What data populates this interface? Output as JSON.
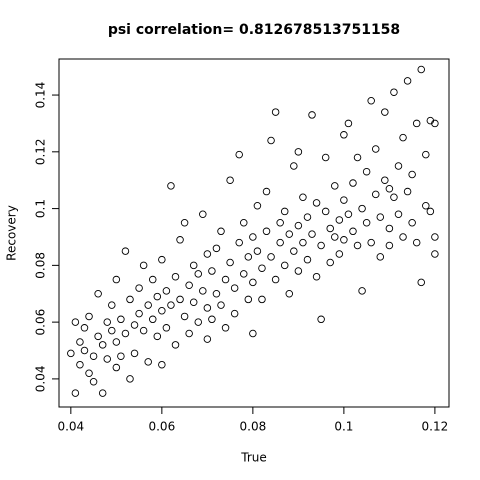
{
  "chart_data": {
    "type": "scatter",
    "title": "psi correlation= 0.812678513751158",
    "x_label": "True",
    "y_label": "Recovery",
    "xlim": [
      0.0374,
      0.1231
    ],
    "ylim": [
      0.0301,
      0.1527
    ],
    "xticks": [
      0.04,
      0.06,
      0.08,
      0.1,
      0.12
    ],
    "yticks": [
      0.04,
      0.06,
      0.08,
      0.1,
      0.12,
      0.14
    ],
    "color": "#000000",
    "x": [
      0.04,
      0.041,
      0.041,
      0.042,
      0.042,
      0.043,
      0.043,
      0.044,
      0.044,
      0.045,
      0.045,
      0.046,
      0.046,
      0.047,
      0.047,
      0.048,
      0.048,
      0.049,
      0.049,
      0.05,
      0.05,
      0.05,
      0.051,
      0.051,
      0.052,
      0.052,
      0.053,
      0.053,
      0.054,
      0.054,
      0.055,
      0.055,
      0.056,
      0.056,
      0.057,
      0.057,
      0.058,
      0.058,
      0.059,
      0.059,
      0.06,
      0.06,
      0.06,
      0.061,
      0.061,
      0.062,
      0.062,
      0.063,
      0.063,
      0.064,
      0.064,
      0.065,
      0.065,
      0.066,
      0.066,
      0.067,
      0.067,
      0.068,
      0.068,
      0.069,
      0.069,
      0.07,
      0.07,
      0.07,
      0.071,
      0.071,
      0.072,
      0.072,
      0.073,
      0.073,
      0.074,
      0.074,
      0.075,
      0.075,
      0.076,
      0.076,
      0.077,
      0.077,
      0.078,
      0.078,
      0.079,
      0.079,
      0.08,
      0.08,
      0.08,
      0.081,
      0.081,
      0.082,
      0.082,
      0.083,
      0.083,
      0.084,
      0.084,
      0.085,
      0.085,
      0.086,
      0.086,
      0.087,
      0.087,
      0.088,
      0.088,
      0.089,
      0.089,
      0.09,
      0.09,
      0.09,
      0.091,
      0.091,
      0.092,
      0.092,
      0.093,
      0.093,
      0.094,
      0.094,
      0.095,
      0.095,
      0.096,
      0.096,
      0.097,
      0.097,
      0.098,
      0.098,
      0.099,
      0.099,
      0.1,
      0.1,
      0.1,
      0.101,
      0.101,
      0.102,
      0.102,
      0.103,
      0.103,
      0.104,
      0.104,
      0.105,
      0.105,
      0.106,
      0.106,
      0.107,
      0.107,
      0.108,
      0.108,
      0.109,
      0.109,
      0.11,
      0.11,
      0.11,
      0.111,
      0.111,
      0.112,
      0.112,
      0.113,
      0.113,
      0.114,
      0.114,
      0.115,
      0.115,
      0.116,
      0.116,
      0.117,
      0.117,
      0.118,
      0.118,
      0.119,
      0.119,
      0.12,
      0.12,
      0.12
    ],
    "values": [
      0.049,
      0.06,
      0.035,
      0.045,
      0.053,
      0.05,
      0.058,
      0.042,
      0.062,
      0.048,
      0.039,
      0.055,
      0.07,
      0.052,
      0.035,
      0.06,
      0.047,
      0.057,
      0.066,
      0.044,
      0.075,
      0.053,
      0.061,
      0.048,
      0.085,
      0.056,
      0.068,
      0.04,
      0.059,
      0.049,
      0.072,
      0.063,
      0.057,
      0.08,
      0.066,
      0.046,
      0.061,
      0.075,
      0.055,
      0.069,
      0.064,
      0.045,
      0.082,
      0.071,
      0.058,
      0.108,
      0.066,
      0.076,
      0.052,
      0.068,
      0.089,
      0.062,
      0.095,
      0.073,
      0.056,
      0.08,
      0.067,
      0.06,
      0.077,
      0.071,
      0.098,
      0.065,
      0.084,
      0.054,
      0.078,
      0.061,
      0.07,
      0.086,
      0.066,
      0.092,
      0.075,
      0.058,
      0.081,
      0.11,
      0.072,
      0.063,
      0.088,
      0.119,
      0.077,
      0.095,
      0.068,
      0.083,
      0.074,
      0.09,
      0.056,
      0.085,
      0.101,
      0.079,
      0.068,
      0.092,
      0.106,
      0.083,
      0.124,
      0.075,
      0.134,
      0.095,
      0.088,
      0.08,
      0.099,
      0.091,
      0.07,
      0.115,
      0.085,
      0.094,
      0.078,
      0.12,
      0.088,
      0.104,
      0.082,
      0.097,
      0.133,
      0.091,
      0.076,
      0.102,
      0.087,
      0.061,
      0.099,
      0.118,
      0.093,
      0.081,
      0.108,
      0.09,
      0.096,
      0.084,
      0.103,
      0.126,
      0.089,
      0.098,
      0.13,
      0.092,
      0.109,
      0.087,
      0.118,
      0.1,
      0.071,
      0.113,
      0.095,
      0.138,
      0.088,
      0.105,
      0.121,
      0.097,
      0.083,
      0.11,
      0.134,
      0.093,
      0.107,
      0.087,
      0.104,
      0.141,
      0.098,
      0.115,
      0.09,
      0.125,
      0.106,
      0.145,
      0.095,
      0.112,
      0.13,
      0.088,
      0.149,
      0.074,
      0.101,
      0.119,
      0.131,
      0.099,
      0.09,
      0.084,
      0.13
    ]
  }
}
